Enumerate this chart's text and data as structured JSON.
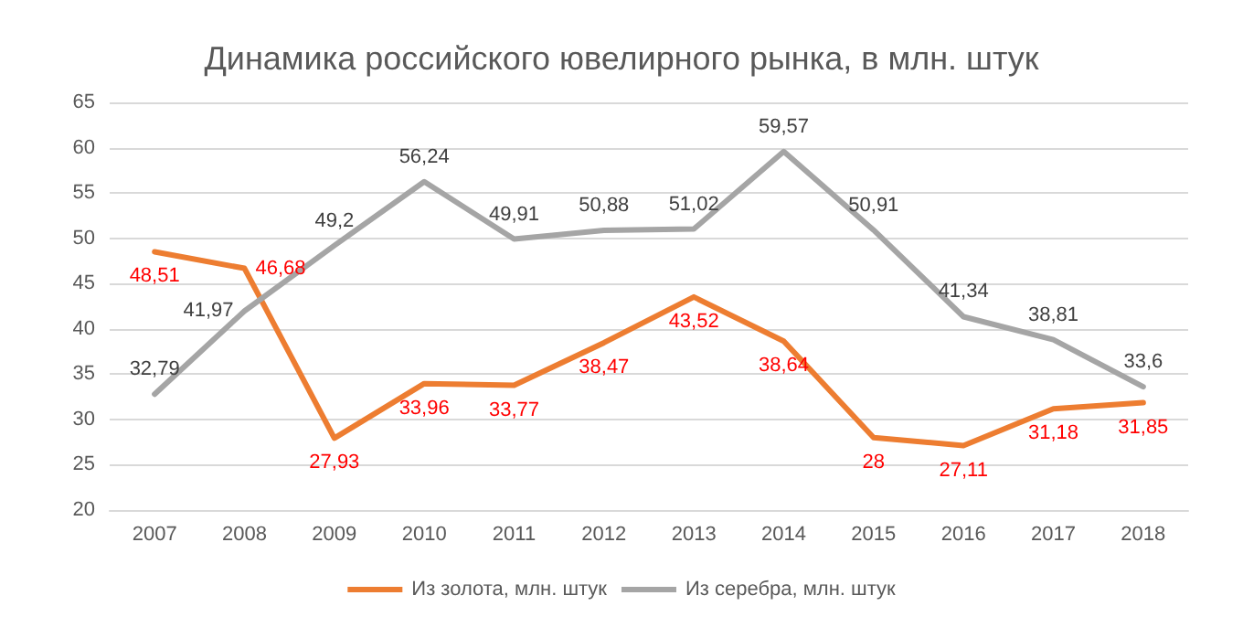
{
  "chart_data": {
    "type": "line",
    "title": "Динамика российского ювелирного рынка, в млн. штук",
    "categories": [
      "2007",
      "2008",
      "2009",
      "2010",
      "2011",
      "2012",
      "2013",
      "2014",
      "2015",
      "2016",
      "2017",
      "2018"
    ],
    "series": [
      {
        "name": "Из золота, млн. штук",
        "color": "#ed7d31",
        "values": [
          48.51,
          46.68,
          27.93,
          33.96,
          33.77,
          38.47,
          43.52,
          38.64,
          28,
          27.11,
          31.18,
          31.85
        ],
        "value_labels": [
          "48,51",
          "46,68",
          "27,93",
          "33,96",
          "33,77",
          "38,47",
          "43,52",
          "38,64",
          "28",
          "27,11",
          "31,18",
          "31,85"
        ]
      },
      {
        "name": "Из серебра, млн. штук",
        "color": "#a5a5a5",
        "values": [
          32.79,
          41.97,
          49.2,
          56.24,
          49.91,
          50.88,
          51.02,
          59.57,
          50.91,
          41.34,
          38.81,
          33.6
        ],
        "value_labels": [
          "32,79",
          "41,97",
          "49,2",
          "56,24",
          "49,91",
          "50,88",
          "51,02",
          "59,57",
          "50,91",
          "41,34",
          "38,81",
          "33,6"
        ]
      }
    ],
    "ylim": [
      20,
      65
    ],
    "yticks": [
      20,
      25,
      30,
      35,
      40,
      45,
      50,
      55,
      60,
      65
    ],
    "grid": "y",
    "legend": "bottom",
    "marker": "none",
    "line_style": "solid"
  }
}
